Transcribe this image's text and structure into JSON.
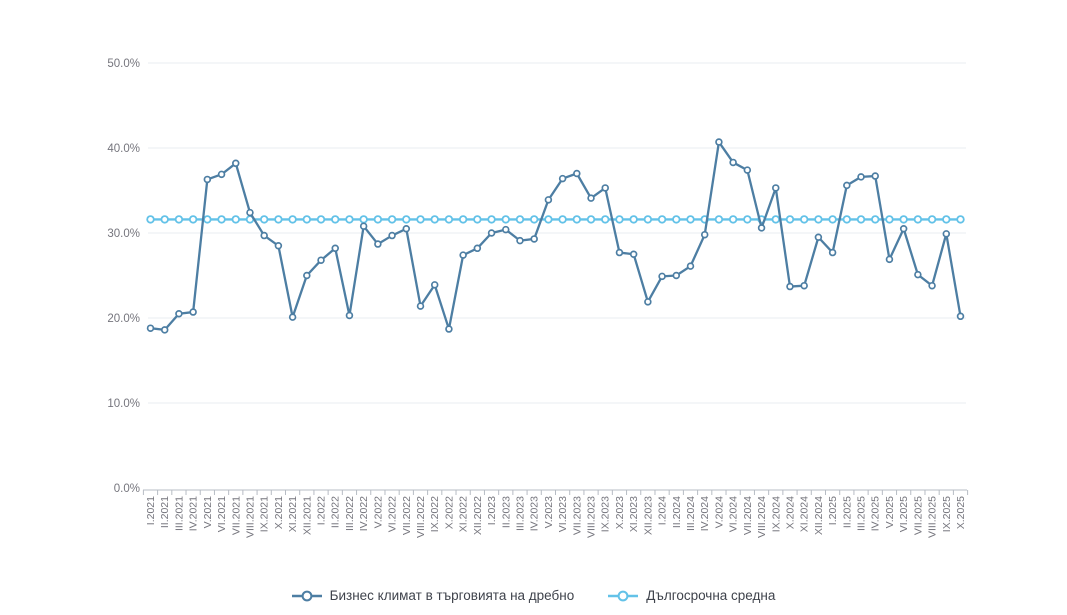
{
  "chart_data": {
    "type": "line",
    "title": "",
    "xlabel": "",
    "ylabel": "",
    "ylim": [
      0,
      50
    ],
    "y_tick_labels": [
      "0.0%",
      "10.0%",
      "20.0%",
      "30.0%",
      "40.0%",
      "50.0%"
    ],
    "grid": true,
    "legend_position": "bottom",
    "categories": [
      "I.2021",
      "II.2021",
      "III.2021",
      "IV.2021",
      "V.2021",
      "VI.2021",
      "VII.2021",
      "VIII.2021",
      "IX.2021",
      "X.2021",
      "XI.2021",
      "XII.2021",
      "I.2022",
      "II.2022",
      "III.2022",
      "IV.2022",
      "V.2022",
      "VI.2022",
      "VII.2022",
      "VIII.2022",
      "IX.2022",
      "X.2022",
      "XI.2022",
      "XII.2022",
      "I.2023",
      "II.2023",
      "III.2023",
      "IV.2023",
      "V.2023",
      "VI.2023",
      "VII.2023",
      "VIII.2023",
      "IX.2023",
      "X.2023",
      "XI.2023",
      "XII.2023",
      "I.2024",
      "II.2024",
      "III.2024",
      "IV.2024",
      "V.2024",
      "VI.2024",
      "VII.2024",
      "VIII.2024",
      "IX.2024",
      "X.2024",
      "XI.2024",
      "XII.2024",
      "I.2025",
      "II.2025",
      "III.2025",
      "IV.2025",
      "V.2025",
      "VI.2025",
      "VII.2025",
      "VIII.2025",
      "IX.2025",
      "X.2025"
    ],
    "series": [
      {
        "name": "Бизнес климат в търговията на дребно",
        "color": "#4d7ea3",
        "values": [
          18.8,
          18.6,
          20.5,
          20.7,
          36.3,
          36.9,
          38.2,
          32.4,
          29.7,
          28.5,
          20.1,
          25.0,
          26.8,
          28.2,
          20.3,
          30.8,
          28.7,
          29.7,
          30.5,
          21.4,
          23.9,
          18.7,
          27.4,
          28.2,
          30.0,
          30.4,
          29.1,
          29.3,
          33.9,
          36.4,
          37.0,
          34.1,
          35.3,
          27.7,
          27.5,
          21.9,
          24.9,
          25.0,
          26.1,
          29.8,
          40.7,
          38.3,
          37.4,
          30.6,
          35.3,
          23.7,
          23.8,
          29.5,
          27.7,
          35.6,
          36.6,
          36.7,
          26.9,
          30.5,
          25.1,
          23.8,
          29.9,
          20.2
        ]
      },
      {
        "name": "Дългосрочна средна",
        "color": "#63c2e8",
        "constant_value": 31.6
      }
    ]
  },
  "style": {
    "grid_color": "#e8ecf1",
    "axis_color": "#b7bcc4",
    "tick_label_color": "#75757d",
    "marker_fill": "#ffffff"
  }
}
